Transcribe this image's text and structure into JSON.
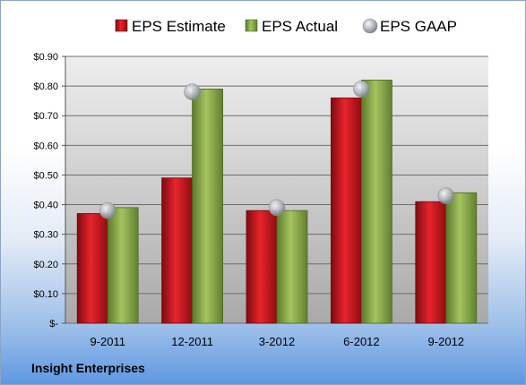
{
  "chart_data": {
    "type": "bar",
    "categories": [
      "9-2011",
      "12-2011",
      "3-2012",
      "6-2012",
      "9-2012"
    ],
    "series": [
      {
        "name": "EPS Estimate",
        "values": [
          0.37,
          0.49,
          0.38,
          0.76,
          0.41
        ],
        "color": "#c8161d"
      },
      {
        "name": "EPS Actual",
        "values": [
          0.39,
          0.79,
          0.38,
          0.82,
          0.44
        ],
        "color": "#8bab4e"
      },
      {
        "name": "EPS GAAP",
        "values": [
          0.38,
          0.78,
          0.39,
          0.79,
          0.43
        ],
        "color": "#b8bcc4",
        "marker": "circle"
      }
    ],
    "ylim": [
      0,
      0.9
    ],
    "yticks": [
      0,
      0.1,
      0.2,
      0.3,
      0.4,
      0.5,
      0.6,
      0.7,
      0.8,
      0.9
    ],
    "ytick_labels": [
      "$-",
      "$0.10",
      "$0.20",
      "$0.30",
      "$0.40",
      "$0.50",
      "$0.60",
      "$0.70",
      "$0.80",
      "$0.90"
    ],
    "legend_position": "top",
    "grid": true
  },
  "footer": {
    "company": "Insight Enterprises"
  }
}
